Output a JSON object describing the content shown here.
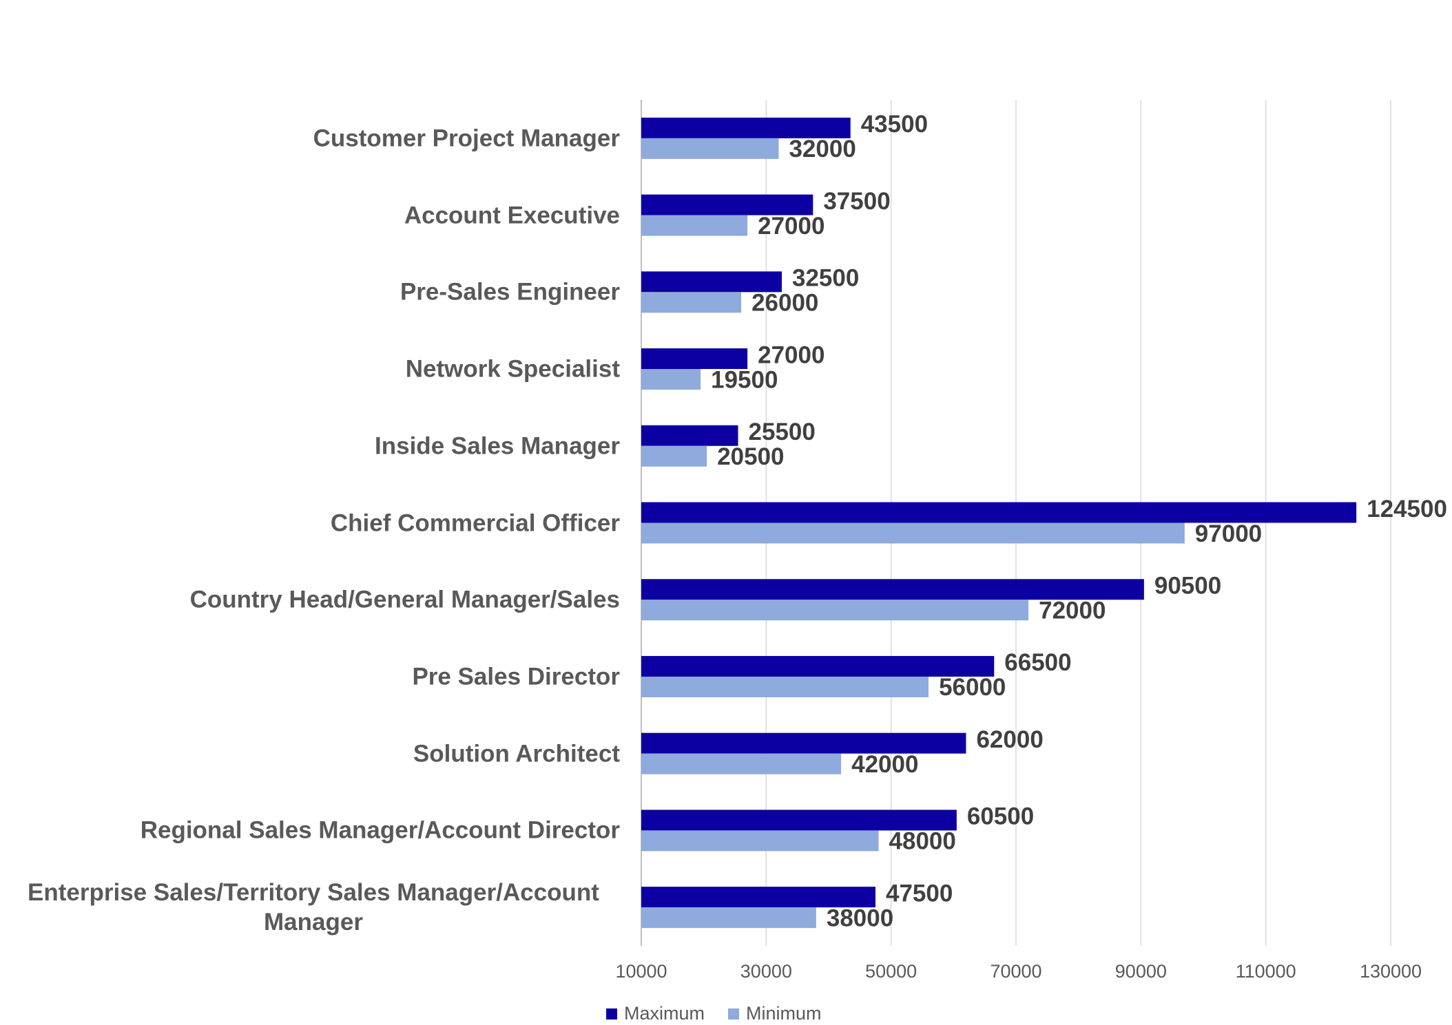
{
  "chart_data": {
    "type": "barh",
    "categories": [
      "Customer Project Manager",
      "Account Executive",
      "Pre-Sales Engineer",
      "Network Specialist",
      "Inside Sales Manager",
      "Chief Commercial Officer",
      "Country Head/General Manager/Sales",
      "Pre Sales Director",
      "Solution Architect",
      "Regional Sales Manager/Account Director",
      "Enterprise Sales/Territory Sales Manager/Account Manager"
    ],
    "series": [
      {
        "name": "Maximum",
        "color": "#0c00a3",
        "values": [
          43500,
          37500,
          32500,
          27000,
          25500,
          124500,
          90500,
          66500,
          62000,
          60500,
          47500
        ]
      },
      {
        "name": "Minimum",
        "color": "#8faadc",
        "values": [
          32000,
          27000,
          26000,
          19500,
          20500,
          97000,
          72000,
          56000,
          42000,
          48000,
          38000
        ]
      }
    ],
    "xlim": [
      10000,
      130000
    ],
    "xticks": [
      10000,
      30000,
      50000,
      70000,
      90000,
      110000,
      130000
    ],
    "grid": true,
    "legend": "bottom"
  }
}
